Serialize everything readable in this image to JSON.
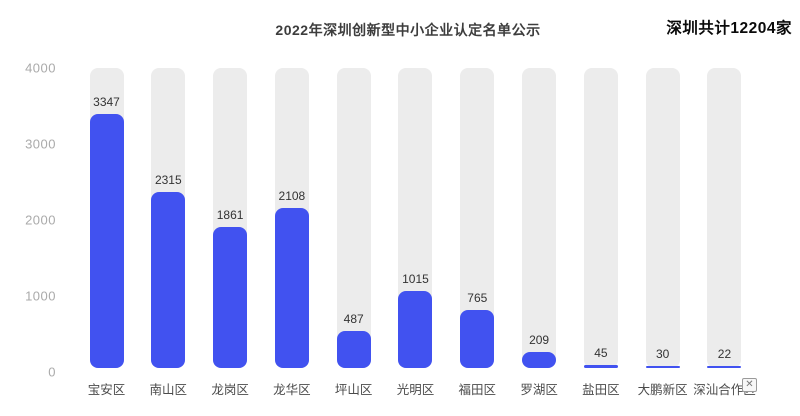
{
  "header": {
    "title": "2022年深圳创新型中小企业认定名单公示",
    "total_badge": "深圳共计12204家"
  },
  "chart_data": {
    "type": "bar",
    "title": "2022年深圳创新型中小企业认定名单公示",
    "annotation": "深圳共计12204家",
    "total": 12204,
    "categories": [
      "宝安区",
      "南山区",
      "龙岗区",
      "龙华区",
      "坪山区",
      "光明区",
      "福田区",
      "罗湖区",
      "盐田区",
      "大鹏新区",
      "深汕合作区"
    ],
    "values": [
      3347,
      2315,
      1861,
      2108,
      487,
      1015,
      765,
      209,
      45,
      30,
      22
    ],
    "yticks": [
      0,
      1000,
      2000,
      3000,
      4000
    ],
    "ylim": [
      0,
      4000
    ],
    "xlabel": "",
    "ylabel": "",
    "grid": false,
    "legend": "none",
    "bar_color": "#4152f0",
    "track_color": "#ececec",
    "value_label_color": "#333333",
    "ytick_color": "#aaaaaa",
    "xtick_color": "#4b4b4b"
  },
  "misc": {
    "broken_image_glyph": "✕"
  }
}
